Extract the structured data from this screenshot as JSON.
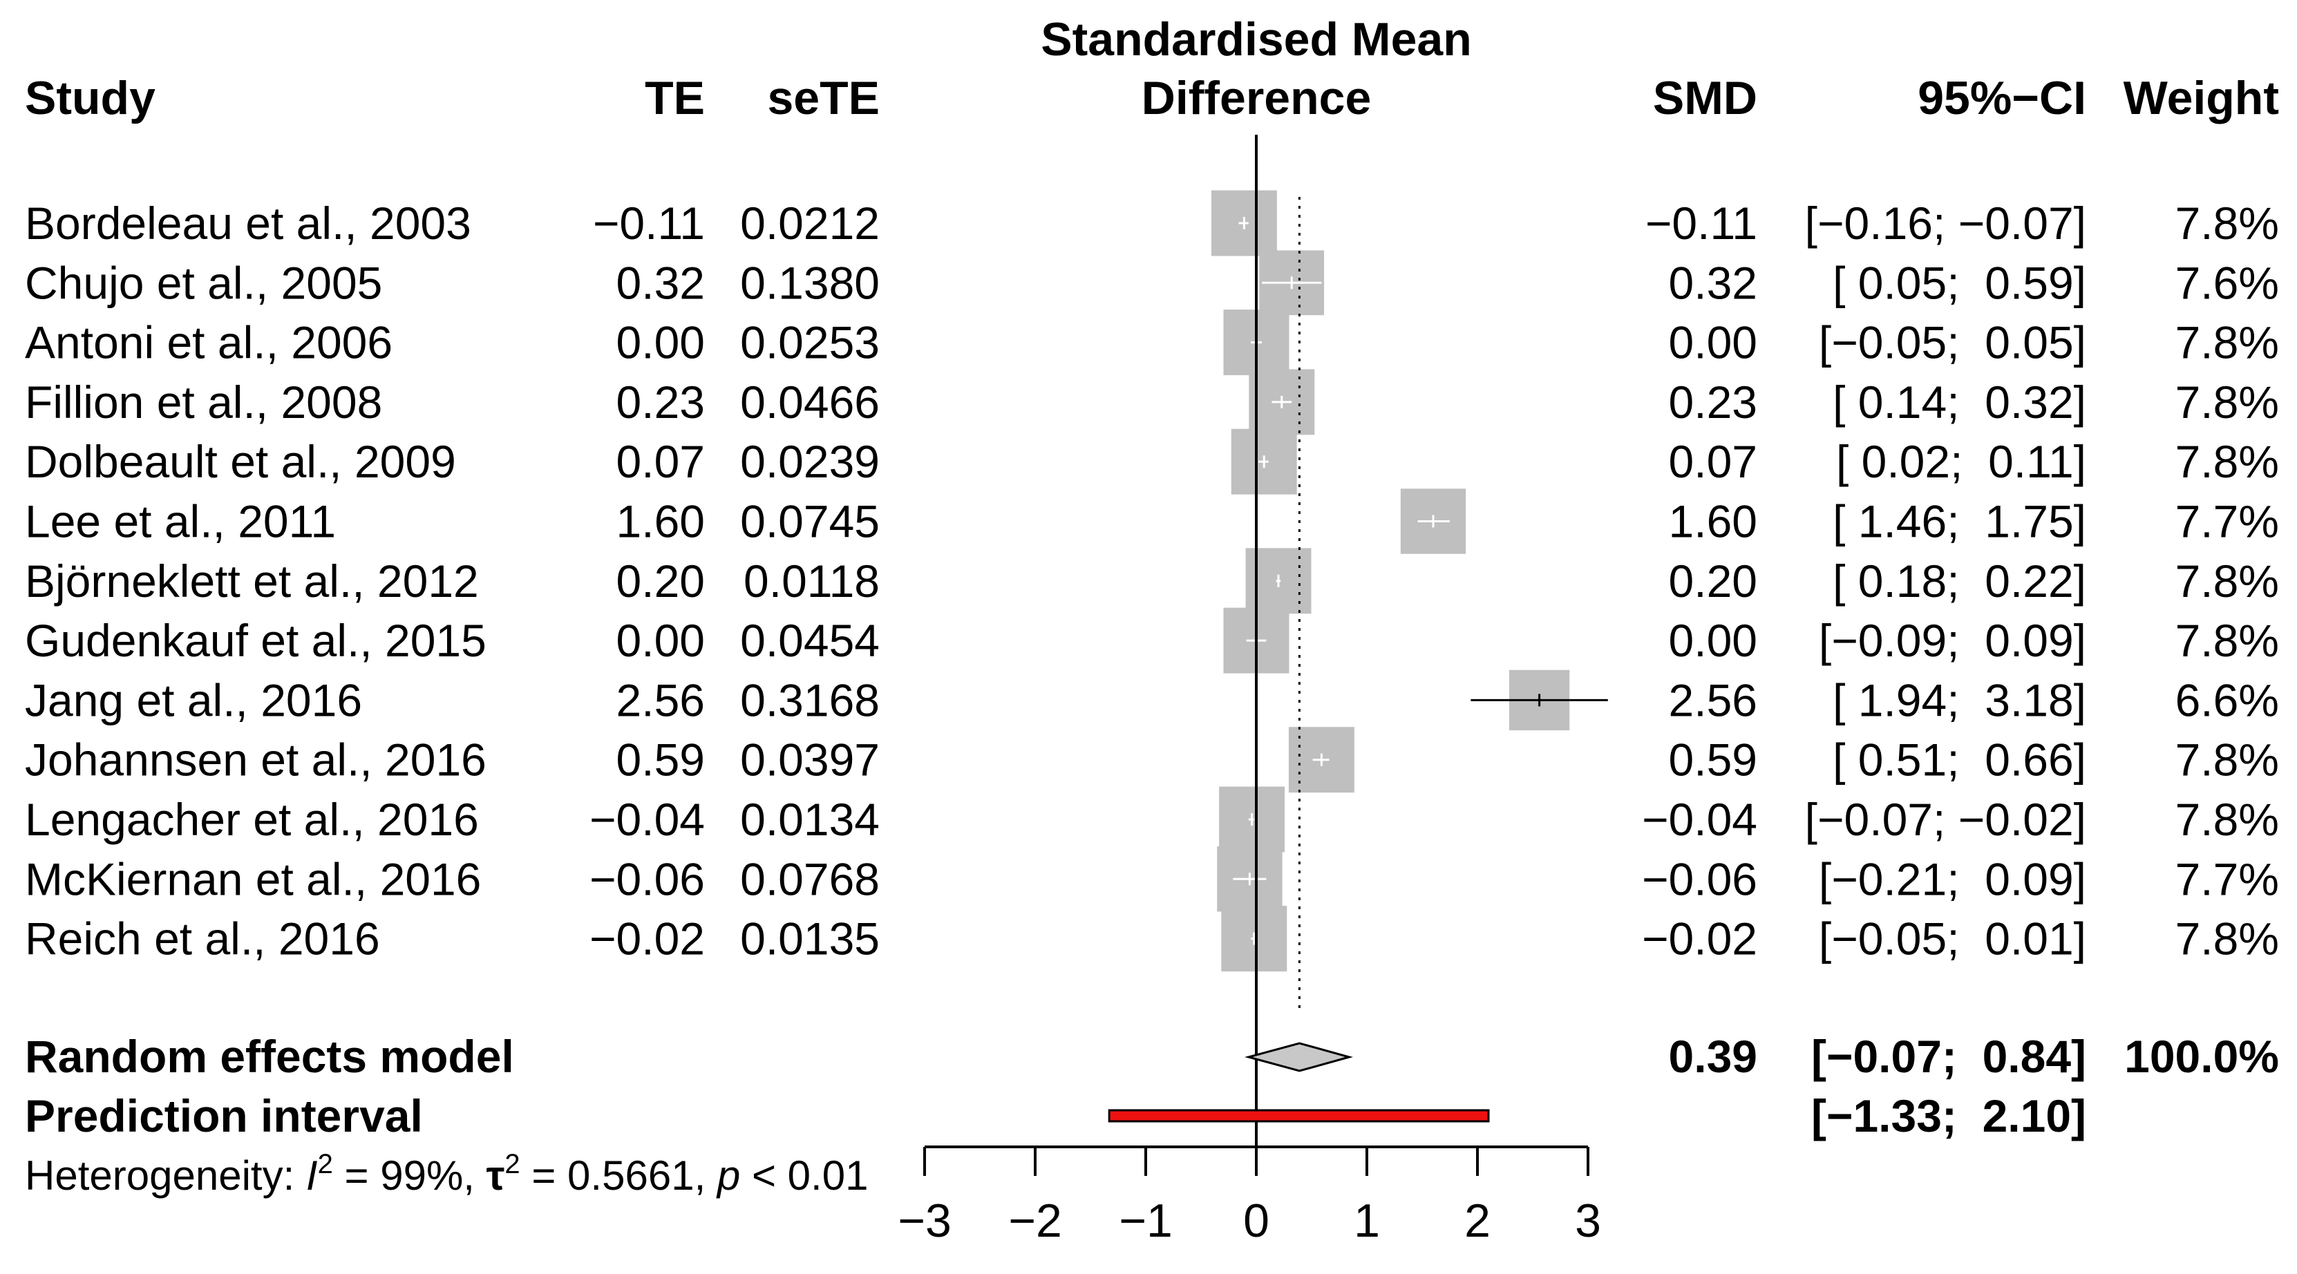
{
  "chart_data": {
    "type": "forest",
    "title_line1": "Standardised Mean",
    "title_line2": "Difference",
    "headers": {
      "study": "Study",
      "te": "TE",
      "sete": "seTE",
      "smd": "SMD",
      "ci": "95%−CI",
      "weight": "Weight"
    },
    "studies": [
      {
        "name": "Bordeleau  et al., 2003",
        "te": "−0.11",
        "sete": "0.0212",
        "smd": -0.11,
        "smd_label": "−0.11",
        "lower": -0.16,
        "upper": -0.07,
        "ci_label": "[−0.16; −0.07]",
        "weight": 7.8,
        "weight_label": "7.8%"
      },
      {
        "name": "Chujo et al., 2005",
        "te": "0.32",
        "sete": "0.1380",
        "smd": 0.32,
        "smd_label": "0.32",
        "lower": 0.05,
        "upper": 0.59,
        "ci_label": "[ 0.05;  0.59]",
        "weight": 7.6,
        "weight_label": "7.6%"
      },
      {
        "name": "Antoni et al., 2006",
        "te": "0.00",
        "sete": "0.0253",
        "smd": 0.0,
        "smd_label": "0.00",
        "lower": -0.05,
        "upper": 0.05,
        "ci_label": "[−0.05;  0.05]",
        "weight": 7.8,
        "weight_label": "7.8%"
      },
      {
        "name": "Fillion et al., 2008",
        "te": "0.23",
        "sete": "0.0466",
        "smd": 0.23,
        "smd_label": "0.23",
        "lower": 0.14,
        "upper": 0.32,
        "ci_label": "[ 0.14;  0.32]",
        "weight": 7.8,
        "weight_label": "7.8%"
      },
      {
        "name": "Dolbeault et al., 2009",
        "te": "0.07",
        "sete": "0.0239",
        "smd": 0.07,
        "smd_label": "0.07",
        "lower": 0.02,
        "upper": 0.11,
        "ci_label": "[ 0.02;  0.11]",
        "weight": 7.8,
        "weight_label": "7.8%"
      },
      {
        "name": "Lee et al., 2011",
        "te": "1.60",
        "sete": "0.0745",
        "smd": 1.6,
        "smd_label": "1.60",
        "lower": 1.46,
        "upper": 1.75,
        "ci_label": "[ 1.46;  1.75]",
        "weight": 7.7,
        "weight_label": "7.7%"
      },
      {
        "name": "Björneklett et al., 2012",
        "te": "0.20",
        "sete": "0.0118",
        "smd": 0.2,
        "smd_label": "0.20",
        "lower": 0.18,
        "upper": 0.22,
        "ci_label": "[ 0.18;  0.22]",
        "weight": 7.8,
        "weight_label": "7.8%"
      },
      {
        "name": "Gudenkauf et al., 2015",
        "te": "0.00",
        "sete": "0.0454",
        "smd": 0.0,
        "smd_label": "0.00",
        "lower": -0.09,
        "upper": 0.09,
        "ci_label": "[−0.09;  0.09]",
        "weight": 7.8,
        "weight_label": "7.8%"
      },
      {
        "name": "Jang et al., 2016",
        "te": "2.56",
        "sete": "0.3168",
        "smd": 2.56,
        "smd_label": "2.56",
        "lower": 1.94,
        "upper": 3.18,
        "ci_label": "[ 1.94;  3.18]",
        "weight": 6.6,
        "weight_label": "6.6%"
      },
      {
        "name": "Johannsen et al., 2016",
        "te": "0.59",
        "sete": "0.0397",
        "smd": 0.59,
        "smd_label": "0.59",
        "lower": 0.51,
        "upper": 0.66,
        "ci_label": "[ 0.51;  0.66]",
        "weight": 7.8,
        "weight_label": "7.8%"
      },
      {
        "name": "Lengacher et al., 2016",
        "te": "−0.04",
        "sete": "0.0134",
        "smd": -0.04,
        "smd_label": "−0.04",
        "lower": -0.07,
        "upper": -0.02,
        "ci_label": "[−0.07; −0.02]",
        "weight": 7.8,
        "weight_label": "7.8%"
      },
      {
        "name": "McKiernan et al., 2016",
        "te": "−0.06",
        "sete": "0.0768",
        "smd": -0.06,
        "smd_label": "−0.06",
        "lower": -0.21,
        "upper": 0.09,
        "ci_label": "[−0.21;  0.09]",
        "weight": 7.7,
        "weight_label": "7.7%"
      },
      {
        "name": "Reich et al., 2016",
        "te": "−0.02",
        "sete": "0.0135",
        "smd": -0.02,
        "smd_label": "−0.02",
        "lower": -0.05,
        "upper": 0.01,
        "ci_label": "[−0.05;  0.01]",
        "weight": 7.8,
        "weight_label": "7.8%"
      }
    ],
    "random_effects": {
      "label": "Random effects model",
      "smd": 0.39,
      "smd_label": "0.39",
      "lower": -0.07,
      "upper": 0.84,
      "ci_label": "[−0.07;  0.84]",
      "weight_label": "100.0%"
    },
    "prediction": {
      "label": "Prediction interval",
      "lower": -1.33,
      "upper": 2.1,
      "ci_label": "[−1.33;  2.10]"
    },
    "heterogeneity": {
      "prefix": "Heterogeneity: ",
      "i2_symbol": "I",
      "i2_value": " = 99%, ",
      "tau_symbol": "τ",
      "tau_value": " = 0.5661, ",
      "p_symbol": "p",
      "p_value": " < 0.01"
    },
    "x_ticks": [
      -3,
      -2,
      -1,
      0,
      1,
      2,
      3
    ],
    "x_tick_labels": [
      "−3",
      "−2",
      "−1",
      "0",
      "1",
      "2",
      "3"
    ],
    "xlim": [
      -3,
      3
    ],
    "colors": {
      "box": "#bfbfbf",
      "diamond": "#c8c8c8",
      "prediction": "#ee1111",
      "line": "#000000"
    }
  }
}
